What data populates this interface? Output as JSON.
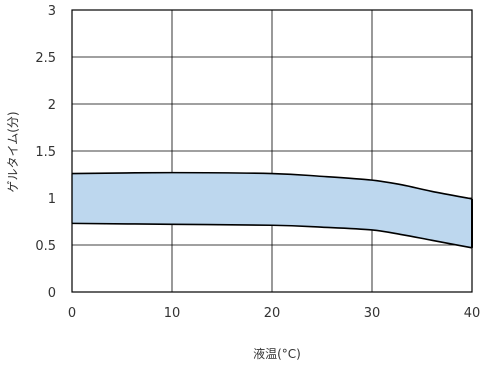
{
  "chart_data": {
    "type": "area",
    "title": "",
    "xlabel": "液温(°C)",
    "ylabel": "ゲルタイム(分)",
    "xlim": [
      0,
      40
    ],
    "ylim": [
      0,
      3
    ],
    "xticks": [
      0,
      10,
      20,
      30,
      40
    ],
    "yticks": [
      0,
      0.5,
      1,
      1.5,
      2,
      2.5,
      3
    ],
    "ytick_labels": [
      "0",
      "0.5",
      "1",
      "1.5",
      "2",
      "2.5",
      "3"
    ],
    "grid": true,
    "legend": "none",
    "band": {
      "upper": [
        {
          "x": 0,
          "y": 1.26
        },
        {
          "x": 10,
          "y": 1.27
        },
        {
          "x": 20,
          "y": 1.26
        },
        {
          "x": 25,
          "y": 1.23
        },
        {
          "x": 30,
          "y": 1.19
        },
        {
          "x": 33,
          "y": 1.14
        },
        {
          "x": 36,
          "y": 1.07
        },
        {
          "x": 40,
          "y": 0.99
        }
      ],
      "lower": [
        {
          "x": 0,
          "y": 0.73
        },
        {
          "x": 10,
          "y": 0.72
        },
        {
          "x": 20,
          "y": 0.71
        },
        {
          "x": 25,
          "y": 0.69
        },
        {
          "x": 30,
          "y": 0.66
        },
        {
          "x": 33,
          "y": 0.61
        },
        {
          "x": 36,
          "y": 0.55
        },
        {
          "x": 40,
          "y": 0.47
        }
      ],
      "fill_color": "#bdd7ee",
      "stroke_color": "#000000"
    }
  }
}
